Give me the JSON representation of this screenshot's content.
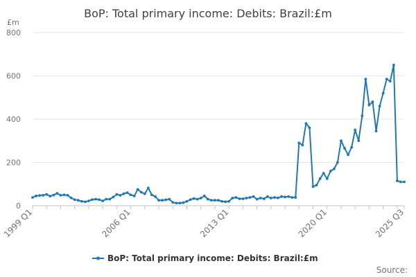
{
  "chart_data": {
    "type": "line",
    "title": "BoP: Total primary income: Debits: Brazil:£m",
    "unit_label": "£m",
    "ylim": [
      0,
      800
    ],
    "yticks": [
      0,
      200,
      400,
      600,
      800
    ],
    "x_tick_labels": [
      "1999 Q1",
      "2006 Q1",
      "2013 Q1",
      "2020 Q1",
      "2025 Q3"
    ],
    "legend_position": "bottom",
    "grid": "horizontal",
    "source_label": "Source:",
    "colors": {
      "series": "#1f77b4",
      "grid": "#e6e6e6",
      "text": "#707070"
    },
    "series": [
      {
        "name": "BoP: Total primary income: Debits: Brazil:£m",
        "x": [
          "1999 Q1",
          "1999 Q2",
          "1999 Q3",
          "1999 Q4",
          "2000 Q1",
          "2000 Q2",
          "2000 Q3",
          "2000 Q4",
          "2001 Q1",
          "2001 Q2",
          "2001 Q3",
          "2001 Q4",
          "2002 Q1",
          "2002 Q2",
          "2002 Q3",
          "2002 Q4",
          "2003 Q1",
          "2003 Q2",
          "2003 Q3",
          "2003 Q4",
          "2004 Q1",
          "2004 Q2",
          "2004 Q3",
          "2004 Q4",
          "2005 Q1",
          "2005 Q2",
          "2005 Q3",
          "2005 Q4",
          "2006 Q1",
          "2006 Q2",
          "2006 Q3",
          "2006 Q4",
          "2007 Q1",
          "2007 Q2",
          "2007 Q3",
          "2007 Q4",
          "2008 Q1",
          "2008 Q2",
          "2008 Q3",
          "2008 Q4",
          "2009 Q1",
          "2009 Q2",
          "2009 Q3",
          "2009 Q4",
          "2010 Q1",
          "2010 Q2",
          "2010 Q3",
          "2010 Q4",
          "2011 Q1",
          "2011 Q2",
          "2011 Q3",
          "2011 Q4",
          "2012 Q1",
          "2012 Q2",
          "2012 Q3",
          "2012 Q4",
          "2013 Q1",
          "2013 Q2",
          "2013 Q3",
          "2013 Q4",
          "2014 Q1",
          "2014 Q2",
          "2014 Q3",
          "2014 Q4",
          "2015 Q1",
          "2015 Q2",
          "2015 Q3",
          "2015 Q4",
          "2016 Q1",
          "2016 Q2",
          "2016 Q3",
          "2016 Q4",
          "2017 Q1",
          "2017 Q2",
          "2017 Q3",
          "2017 Q4",
          "2018 Q1",
          "2018 Q2",
          "2018 Q3",
          "2018 Q4",
          "2019 Q1",
          "2019 Q2",
          "2019 Q3",
          "2019 Q4",
          "2020 Q1",
          "2020 Q2",
          "2020 Q3",
          "2020 Q4",
          "2021 Q1",
          "2021 Q2",
          "2021 Q3",
          "2021 Q4",
          "2022 Q1",
          "2022 Q2",
          "2022 Q3",
          "2022 Q4",
          "2023 Q1",
          "2023 Q2",
          "2023 Q3",
          "2023 Q4",
          "2024 Q1",
          "2024 Q2",
          "2024 Q3",
          "2024 Q4",
          "2025 Q1",
          "2025 Q2",
          "2025 Q3"
        ],
        "values": [
          38,
          45,
          47,
          48,
          52,
          44,
          49,
          57,
          48,
          50,
          48,
          36,
          28,
          25,
          20,
          18,
          22,
          28,
          30,
          28,
          22,
          30,
          30,
          40,
          52,
          48,
          55,
          60,
          50,
          45,
          75,
          62,
          55,
          82,
          50,
          42,
          25,
          25,
          27,
          30,
          15,
          12,
          12,
          14,
          20,
          28,
          33,
          30,
          35,
          45,
          30,
          25,
          25,
          25,
          20,
          18,
          20,
          35,
          38,
          32,
          32,
          35,
          38,
          42,
          30,
          35,
          32,
          42,
          35,
          38,
          36,
          42,
          40,
          42,
          38,
          38,
          290,
          280,
          380,
          360,
          88,
          95,
          125,
          150,
          125,
          160,
          170,
          200,
          300,
          265,
          235,
          270,
          350,
          300,
          415,
          585,
          465,
          480,
          345,
          460,
          520,
          585,
          575,
          650,
          115,
          110,
          110
        ]
      }
    ]
  }
}
